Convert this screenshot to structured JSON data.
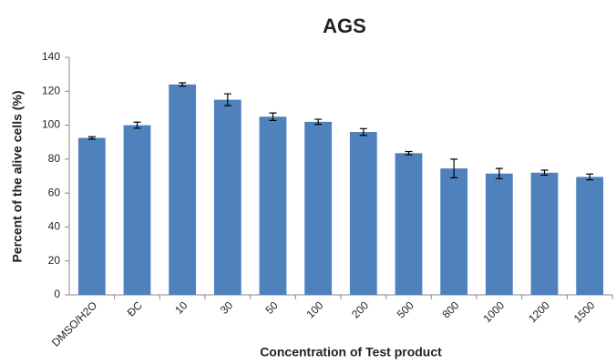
{
  "chart_data": {
    "type": "bar",
    "title": "AGS",
    "xlabel": "Concentration of Test product",
    "ylabel": "Percent of the alive cells (%)",
    "categories": [
      "DMSO/H2O",
      "ĐC",
      "10",
      "30",
      "50",
      "100",
      "200",
      "500",
      "800",
      "1000",
      "1200",
      "1500"
    ],
    "values": [
      92.5,
      100,
      124,
      115,
      105,
      102,
      96,
      83.5,
      74.5,
      71.5,
      72,
      69.5
    ],
    "errors": [
      0.7,
      1.8,
      1,
      3.5,
      2.2,
      1.5,
      2,
      1,
      5.5,
      3,
      1.5,
      1.7
    ],
    "color": "#4f81bd",
    "ylim": [
      0,
      140
    ],
    "yticks": [
      0,
      20,
      40,
      60,
      80,
      100,
      120,
      140
    ],
    "grid": false
  }
}
